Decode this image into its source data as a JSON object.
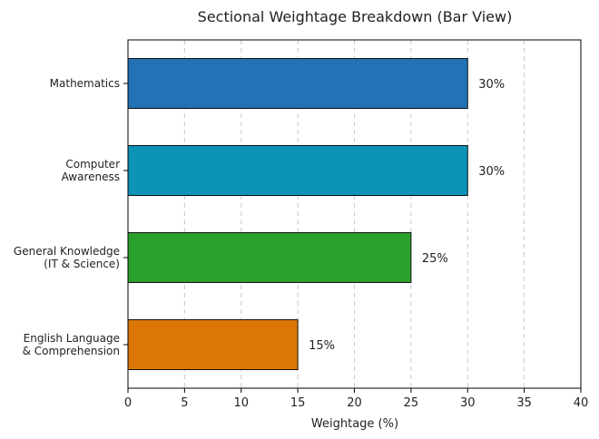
{
  "chart_data": {
    "type": "bar",
    "orientation": "horizontal",
    "title": "Sectional Weightage Breakdown (Bar View)",
    "xlabel": "Weightage (%)",
    "ylabel": "",
    "xlim": [
      0,
      40
    ],
    "xticks": [
      0,
      5,
      10,
      15,
      20,
      25,
      30,
      35,
      40
    ],
    "grid": "x-dashed",
    "categories": [
      [
        "Mathematics"
      ],
      [
        "Computer",
        "Awareness"
      ],
      [
        "General Knowledge",
        "(IT & Science)"
      ],
      [
        "English Language",
        "& Comprehension"
      ]
    ],
    "values": [
      30,
      30,
      25,
      15
    ],
    "data_labels": [
      "30%",
      "30%",
      "25%",
      "15%"
    ],
    "colors": [
      "#2272b5",
      "#0b93b8",
      "#2ca02c",
      "#dc7707"
    ]
  }
}
